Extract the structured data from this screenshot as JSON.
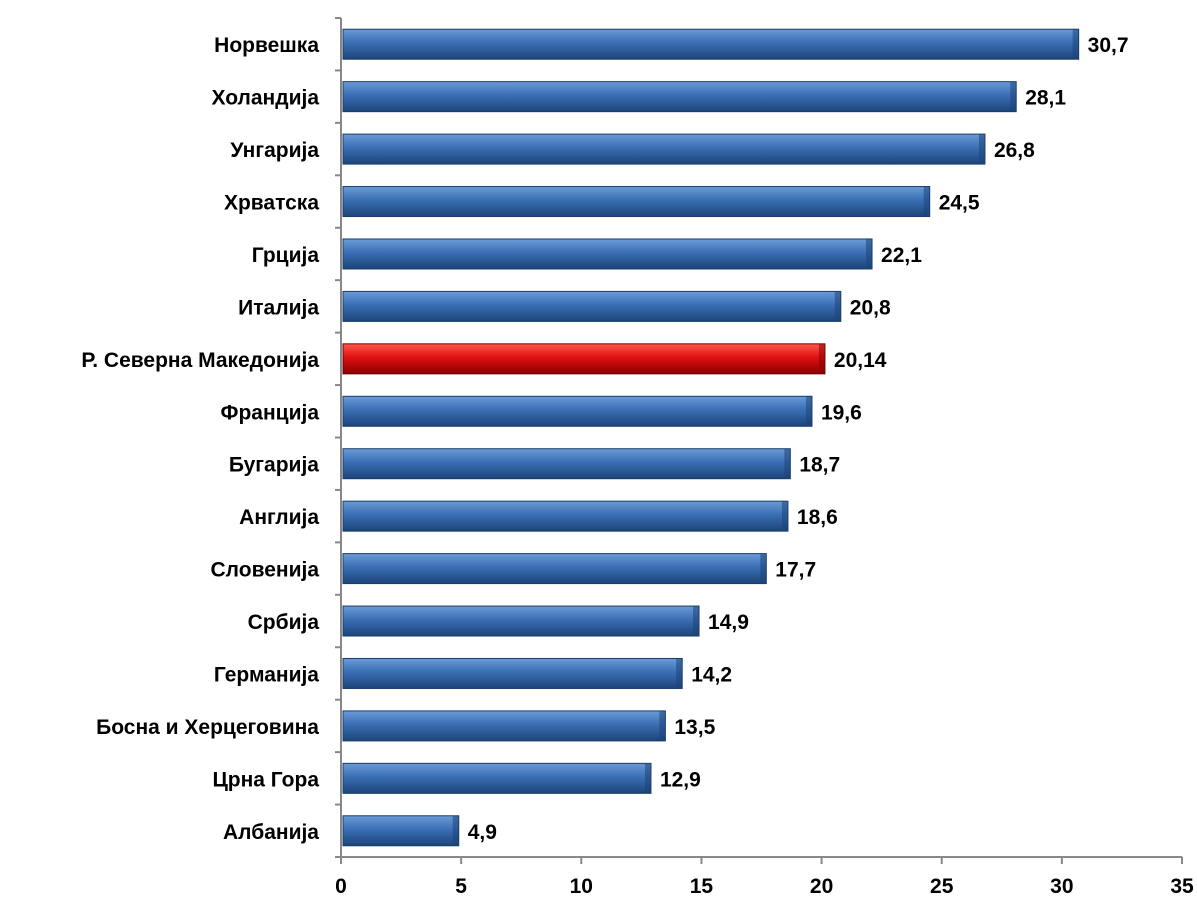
{
  "chart_data": {
    "type": "bar",
    "orientation": "horizontal",
    "categories": [
      "Норвешка",
      "Холандија",
      "Унгарија",
      "Хрватска",
      "Грција",
      "Италија",
      "Р. Северна  Македонија",
      "Франција ",
      "Бугарија",
      "Англија ",
      "Словенија",
      "Србија",
      "Германија ",
      "Босна и Херцеговина",
      "Црна Гора",
      "Албанија"
    ],
    "values": [
      30.7,
      28.1,
      26.8,
      24.5,
      22.1,
      20.8,
      20.14,
      19.6,
      18.7,
      18.6,
      17.7,
      14.9,
      14.2,
      13.5,
      12.9,
      4.9
    ],
    "value_labels": [
      "30,7",
      "28,1",
      "26,8",
      "24,5",
      "22,1",
      "20,8",
      "20,14",
      "19,6",
      "18,7",
      "18,6",
      "17,7",
      "14,9",
      "14,2",
      "13,5",
      "12,9",
      "4,9"
    ],
    "highlight_category": "Р. Северна  Македонија",
    "title": "",
    "xlabel": "",
    "ylabel": "",
    "xlim": [
      0,
      35
    ],
    "xticks": [
      0,
      5,
      10,
      15,
      20,
      25,
      30,
      35
    ],
    "grid": false,
    "legend": "none",
    "colors": {
      "bar": "#3a6fb5",
      "bar_light": "#6b9bd6",
      "bar_dark": "#1d4478",
      "bar_border": "#1a3c6a",
      "highlight": "#e01010",
      "highlight_light": "#ff5a4a",
      "highlight_dark": "#8a0000",
      "highlight_border": "#6a0000",
      "axis": "#888888",
      "text": "#000000"
    }
  }
}
